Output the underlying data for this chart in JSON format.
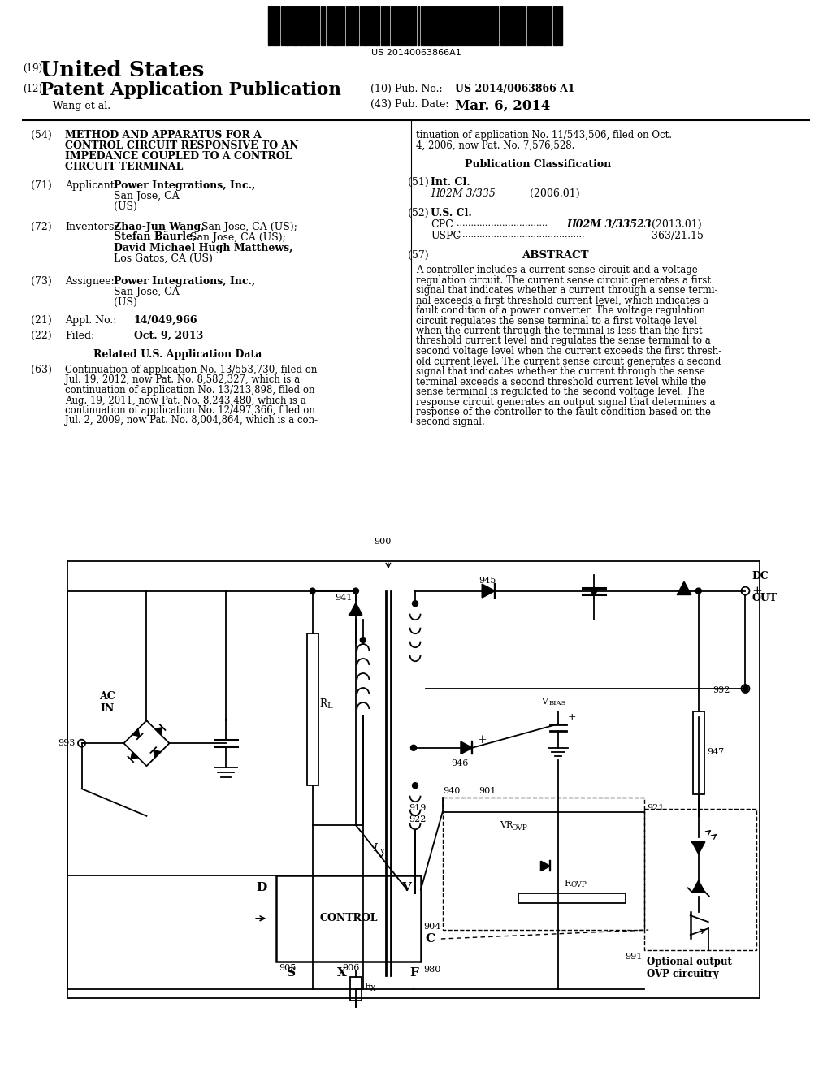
{
  "background_color": "#ffffff",
  "barcode_text": "US 20140063866A1",
  "country": "United States",
  "pub_type": "Patent Application Publication",
  "author": "Wang et al.",
  "pub_no_label": "(10) Pub. No.:",
  "pub_no": "US 2014/0063866 A1",
  "pub_date_label": "(43) Pub. Date:",
  "pub_date": "Mar. 6, 2014",
  "num19": "(19)",
  "num12": "(12)",
  "title_num": "(54)",
  "title_lines": [
    "METHOD AND APPARATUS FOR A",
    "CONTROL CIRCUIT RESPONSIVE TO AN",
    "IMPEDANCE COUPLED TO A CONTROL",
    "CIRCUIT TERMINAL"
  ],
  "applicant_num": "(71)",
  "applicant_label": "Applicant:",
  "inventors_num": "(72)",
  "inventors_label": "Inventors:",
  "assignee_num": "(73)",
  "assignee_label": "Assignee:",
  "appl_num": "(21)",
  "appl_no_label": "Appl. No.:",
  "appl_no": "14/049,966",
  "filed_num": "(22)",
  "filed_label": "Filed:",
  "filed_date": "Oct. 9, 2013",
  "related_header": "Related U.S. Application Data",
  "related_num": "(63)",
  "related_lines_left": [
    "Continuation of application No. 13/553,730, filed on",
    "Jul. 19, 2012, now Pat. No. 8,582,327, which is a",
    "continuation of application No. 13/213,898, filed on",
    "Aug. 19, 2011, now Pat. No. 8,243,480, which is a",
    "continuation of application No. 12/497,366, filed on",
    "Jul. 2, 2009, now Pat. No. 8,004,864, which is a con-"
  ],
  "related_lines_right": [
    "tinuation of application No. 11/543,506, filed on Oct.",
    "4, 2006, now Pat. No. 7,576,528."
  ],
  "pub_class_header": "Publication Classification",
  "intcl_num": "(51)",
  "intcl_label": "Int. Cl.",
  "intcl_class": "H02M 3/335",
  "intcl_year": "(2006.01)",
  "uscl_num": "(52)",
  "uscl_label": "U.S. Cl.",
  "cpc_label": "CPC",
  "cpc_dots": ".................................",
  "cpc_class": "H02M 3/33523",
  "cpc_year": "(2013.01)",
  "uspc_label": "USPC",
  "uspc_dots": ".................................................",
  "uspc_class": "363/21.15",
  "abstract_num": "(57)",
  "abstract_header": "ABSTRACT",
  "abstract_lines": [
    "A controller includes a current sense circuit and a voltage",
    "regulation circuit. The current sense circuit generates a first",
    "signal that indicates whether a current through a sense termi-",
    "nal exceeds a first threshold current level, which indicates a",
    "fault condition of a power converter. The voltage regulation",
    "circuit regulates the sense terminal to a first voltage level",
    "when the current through the terminal is less than the first",
    "threshold current level and regulates the sense terminal to a",
    "second voltage level when the current exceeds the first thresh-",
    "old current level. The current sense circuit generates a second",
    "signal that indicates whether the current through the sense",
    "terminal exceeds a second threshold current level while the",
    "sense terminal is regulated to the second voltage level. The",
    "response circuit generates an output signal that determines a",
    "response of the controller to the fault condition based on the",
    "second signal."
  ]
}
